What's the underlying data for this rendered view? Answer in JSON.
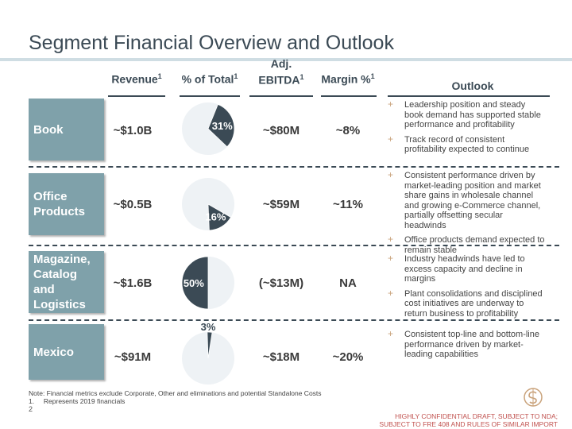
{
  "title": "Segment Financial Overview and Outlook",
  "headers": {
    "revenue": "Revenue",
    "pct_total": "% of Total",
    "ebitda_line1": "Adj.",
    "ebitda_line2": "EBITDA",
    "margin": "Margin %",
    "outlook": "Outlook",
    "footnote_mark": "1"
  },
  "segments": [
    {
      "name": "Book",
      "revenue": "~$1.0B",
      "pct_label": "31%",
      "pct_value": 31,
      "ebitda": "~$80M",
      "margin": "~8%",
      "outlook": [
        "Leadership position and steady book demand has supported stable performance and profitability",
        "Track record of consistent profitability expected to continue"
      ]
    },
    {
      "name": "Office\nProducts",
      "revenue": "~$0.5B",
      "pct_label": "16%",
      "pct_value": 16,
      "ebitda": "~$59M",
      "margin": "~11%",
      "outlook": [
        "Consistent performance driven by market-leading position and market share gains in wholesale channel and growing e-Commerce channel, partially offsetting secular headwinds",
        "Office products demand expected to remain stable"
      ]
    },
    {
      "name": "Magazine,\nCatalog\nand\nLogistics",
      "revenue": "~$1.6B",
      "pct_label": "50%",
      "pct_value": 50,
      "ebitda": "(~$13M)",
      "margin": "NA",
      "outlook": [
        "Industry headwinds have led to excess capacity and decline in margins",
        "Plant consolidations and disciplined cost initiatives are underway to return business to profitability"
      ]
    },
    {
      "name": "Mexico",
      "revenue": "~$91M",
      "pct_label": "3%",
      "pct_value": 3,
      "ebitda": "~$18M",
      "margin": "~20%",
      "outlook": [
        "Consistent top-line and bottom-line performance driven by market-leading capabilities"
      ]
    }
  ],
  "notes": {
    "note": "Note: Financial metrics exclude Corporate, Other and eliminations and potential Standalone Costs",
    "fn1": "1.     Represents 2019 financials"
  },
  "page_number": "2",
  "confidential_line1": "HIGHLY CONFIDENTIAL DRAFT, SUBJECT TO NDA;",
  "confidential_line2": "SUBJECT TO FRE 408 AND RULES OF SIMILAR IMPORT",
  "colors": {
    "accent": "#7fa1aa",
    "dark": "#3b4a55",
    "pie_light": "#eef2f5",
    "plus": "#c9a27a",
    "confidential": "#c0504d"
  },
  "chart_data": {
    "type": "pie",
    "categories": [
      "Book",
      "Office Products",
      "Magazine, Catalog and Logistics",
      "Mexico"
    ],
    "values": [
      31,
      16,
      50,
      3
    ]
  }
}
